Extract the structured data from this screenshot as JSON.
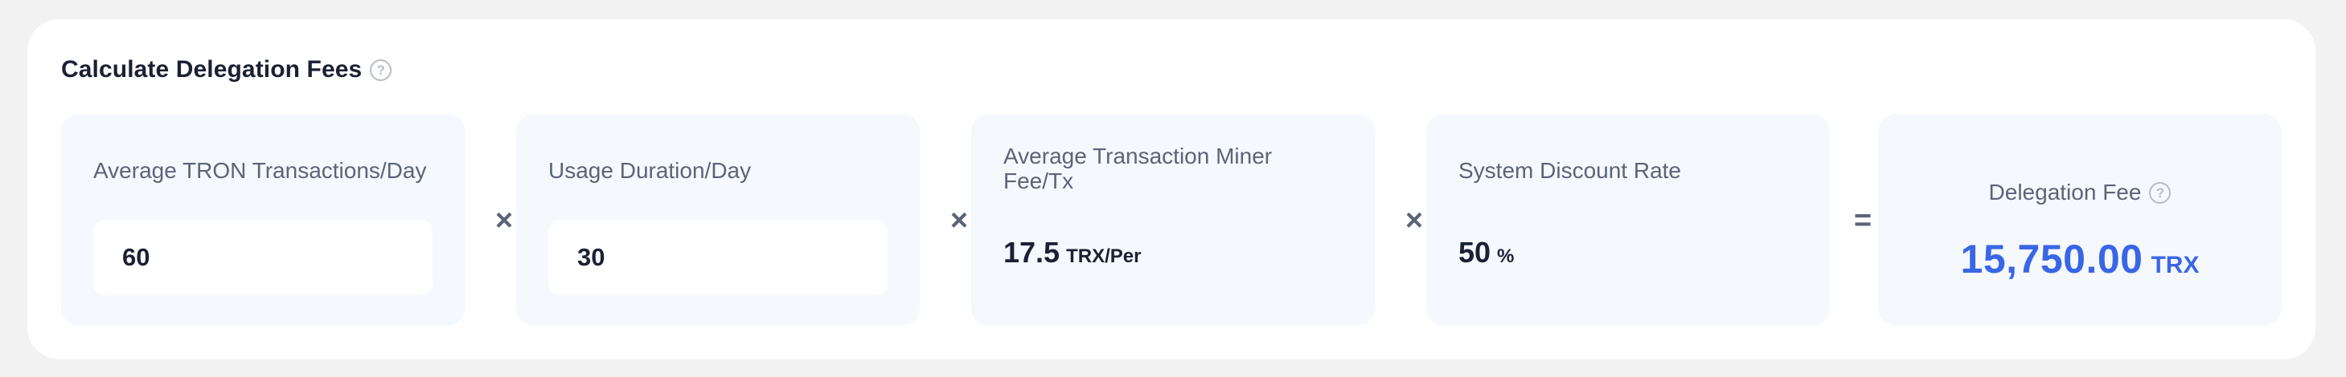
{
  "calculator": {
    "title": "Calculate Delegation Fees",
    "help_glyph": "?",
    "operators": {
      "multiply": "×",
      "equals": "="
    },
    "transactions": {
      "label": "Average TRON Transactions/Day",
      "value": "60"
    },
    "duration": {
      "label": "Usage Duration/Day",
      "value": "30"
    },
    "miner_fee": {
      "label": "Average Transaction Miner Fee/Tx",
      "value": "17.5",
      "unit": "TRX/Per"
    },
    "discount": {
      "label": "System Discount Rate",
      "value": "50",
      "unit": "%"
    },
    "result": {
      "label": "Delegation Fee",
      "value": "15,750.00",
      "unit": "TRX"
    }
  },
  "colors": {
    "page_bg": "#f2f2f2",
    "card_bg": "#ffffff",
    "box_bg": "#f5f8fd",
    "title_text": "#1b2133",
    "label_text": "#5b6478",
    "accent": "#3a66e6",
    "help_icon": "#b7bcc6"
  },
  "icons": {
    "help": "help-circle-icon"
  }
}
